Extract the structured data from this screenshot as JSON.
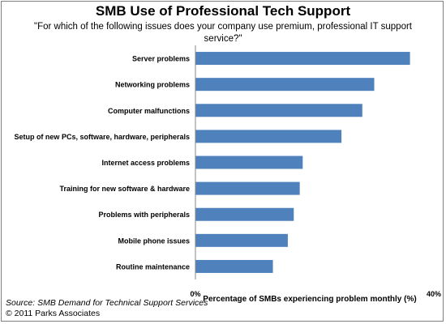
{
  "chart_data": {
    "type": "bar",
    "orientation": "horizontal",
    "title": "SMB Use of Professional Tech Support",
    "subtitle": "\"For which of the following issues does your company use premium, professional IT support service?\"",
    "categories": [
      "Server problems",
      "Networking problems",
      "Computer malfunctions",
      "Setup of new PCs, software, hardware, peripherals",
      "Internet access  problems",
      "Training for new software & hardware",
      "Problems with peripherals",
      "Mobile phone issues",
      "Routine maintenance"
    ],
    "values": [
      36,
      30,
      28,
      24.5,
      18,
      17.5,
      16.5,
      15.5,
      13
    ],
    "xlabel": "Percentage of SMBs experiencing problem monthly (%)",
    "xlim": [
      0,
      40
    ],
    "ticks": [
      "0%",
      "40%"
    ],
    "grid": false,
    "bar_color": "#4f81bd"
  },
  "source": {
    "prefix": "Source: ",
    "text": "SMB Demand for Technical Support Services",
    "copyright": "© 2011 Parks Associates"
  }
}
